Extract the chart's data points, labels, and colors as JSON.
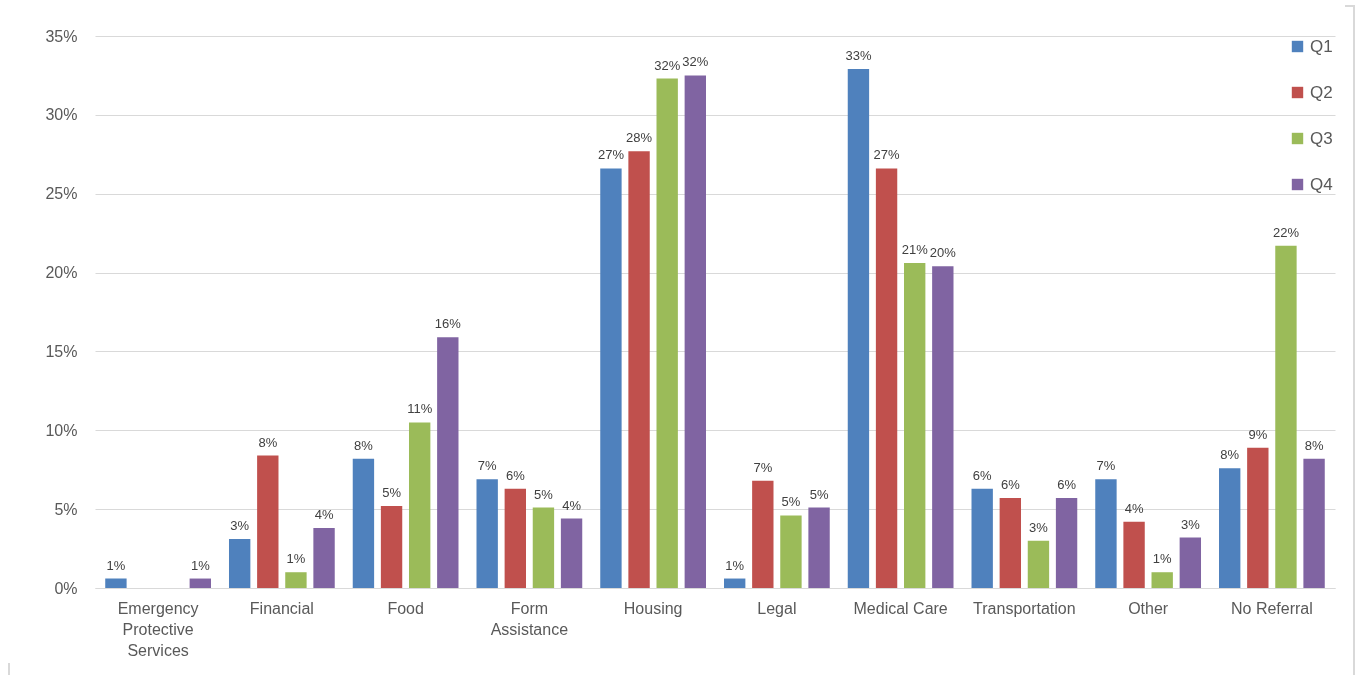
{
  "chart_data": {
    "type": "bar",
    "categories": [
      "Emergency Protective Services",
      "Financial",
      "Food",
      "Form Assistance",
      "Housing",
      "Legal",
      "Medical Care",
      "Transportation",
      "Other",
      "No Referral"
    ],
    "series": [
      {
        "name": "Q1",
        "color": "#4f81bd",
        "values": [
          0.6,
          3.1,
          8.2,
          6.9,
          26.6,
          0.6,
          32.9,
          6.3,
          6.9,
          7.6
        ],
        "value_labels": [
          "1%",
          "3%",
          "8%",
          "7%",
          "27%",
          "1%",
          "33%",
          "6%",
          "7%",
          "8%"
        ]
      },
      {
        "name": "Q2",
        "color": "#c0504d",
        "values": [
          null,
          8.4,
          5.2,
          6.3,
          27.7,
          6.8,
          26.6,
          5.7,
          4.2,
          8.9
        ],
        "value_labels": [
          null,
          "8%",
          "5%",
          "6%",
          "28%",
          "7%",
          "27%",
          "6%",
          "4%",
          "9%"
        ]
      },
      {
        "name": "Q3",
        "color": "#9bbb59",
        "values": [
          null,
          1.0,
          10.5,
          5.1,
          32.3,
          4.6,
          20.6,
          3.0,
          1.0,
          21.7
        ],
        "value_labels": [
          null,
          "1%",
          "11%",
          "5%",
          "32%",
          "5%",
          "21%",
          "3%",
          "1%",
          "22%"
        ]
      },
      {
        "name": "Q4",
        "color": "#8064a2",
        "values": [
          0.6,
          3.8,
          15.9,
          4.4,
          32.5,
          5.1,
          20.4,
          5.7,
          3.2,
          8.2
        ],
        "value_labels": [
          "1%",
          "4%",
          "16%",
          "4%",
          "32%",
          "5%",
          "20%",
          "6%",
          "3%",
          "8%"
        ]
      }
    ],
    "ylim": [
      0,
      35
    ],
    "yticks": [
      {
        "value": 0,
        "label": "0%"
      },
      {
        "value": 5,
        "label": "5%"
      },
      {
        "value": 10,
        "label": "10%"
      },
      {
        "value": 15,
        "label": "15%"
      },
      {
        "value": 20,
        "label": "20%"
      },
      {
        "value": 25,
        "label": "25%"
      },
      {
        "value": 30,
        "label": "30%"
      },
      {
        "value": 35,
        "label": "35%"
      }
    ],
    "grid": "y",
    "legend": "top right"
  }
}
